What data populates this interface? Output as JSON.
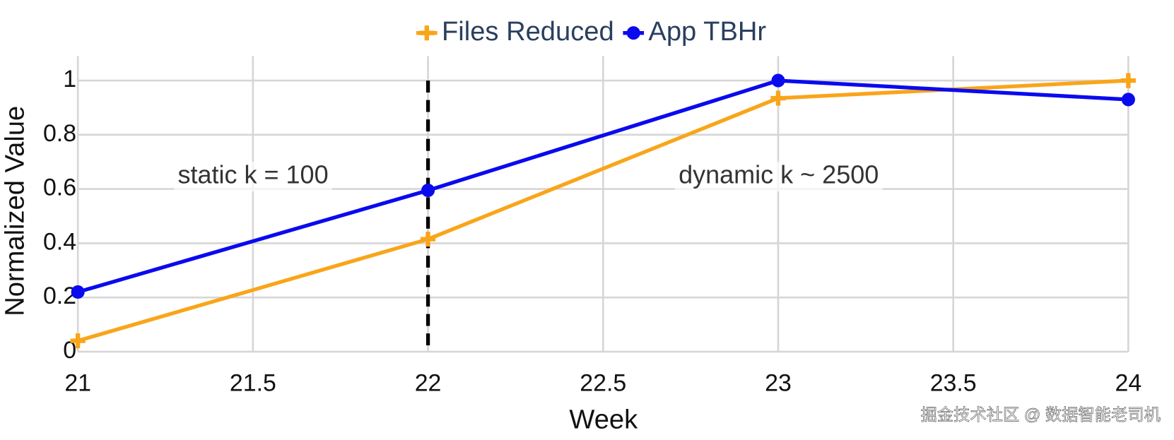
{
  "chart_data": {
    "type": "line",
    "x": [
      21,
      22,
      23,
      24
    ],
    "series": [
      {
        "name": "Files Reduced",
        "color": "#f9a51a",
        "marker": "cross",
        "values": [
          0.04,
          0.415,
          0.935,
          1.0
        ]
      },
      {
        "name": "App TBHr",
        "color": "#0a0aee",
        "marker": "circle",
        "values": [
          0.22,
          0.595,
          1.0,
          0.93
        ]
      }
    ],
    "xlabel": "Week",
    "ylabel": "Normalized Value",
    "xlim": [
      21,
      24
    ],
    "xticks": [
      21,
      21.5,
      22,
      22.5,
      23,
      23.5,
      24
    ],
    "ylim": [
      0,
      1.09
    ],
    "yticks": [
      0,
      0.2,
      0.4,
      0.6,
      0.8,
      1
    ],
    "grid": true,
    "legend": "top",
    "vline": 22,
    "annotations": [
      "static k = 100",
      "dynamic k ~ 2500"
    ],
    "watermark": "掘金技术社区 @ 数据智能老司机"
  }
}
